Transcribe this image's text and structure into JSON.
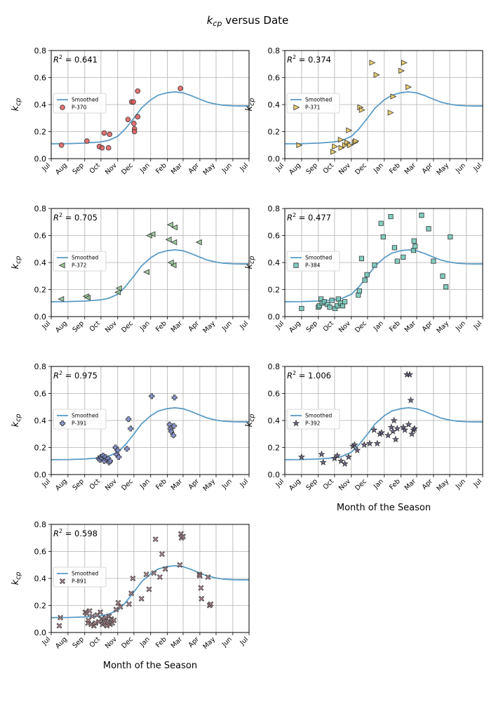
{
  "figure": {
    "title_prefix": "k",
    "title_sub": "cp",
    "title_suffix": " versus Date"
  },
  "colors": {
    "smooth_line": "#5b9bc6",
    "grid": "#b0b0b0"
  },
  "chart_data": {
    "type": "scatter",
    "x_axis": {
      "range": [
        "2023-07-01",
        "2024-07-01"
      ],
      "tick_dates": [
        "2023-07-01",
        "2023-08-01",
        "2023-09-01",
        "2023-10-01",
        "2023-11-01",
        "2023-12-01",
        "2024-01-01",
        "2024-02-01",
        "2024-03-01",
        "2024-04-01",
        "2024-05-01",
        "2024-06-01",
        "2024-07-01"
      ],
      "tick_labels": [
        "Jul",
        "Aug",
        "Sep",
        "Oct",
        "Nov",
        "Dec",
        "Jan",
        "Feb",
        "Mar",
        "Apr",
        "May",
        "Jun",
        "Jul"
      ],
      "label": "Month of the Season"
    },
    "y_axis": {
      "label_prefix": "k",
      "label_sub": "cp",
      "range": [
        0,
        0.8
      ],
      "ticks": [
        "0.0",
        "0.2",
        "0.4",
        "0.6",
        "0.8"
      ]
    },
    "grid": true,
    "legend_placement": "center-left",
    "smoothed": {
      "name": "Smoothed",
      "points": [
        [
          "2023-07-01",
          0.11
        ],
        [
          "2023-08-01",
          0.111
        ],
        [
          "2023-09-01",
          0.115
        ],
        [
          "2023-10-01",
          0.124
        ],
        [
          "2023-10-15",
          0.135
        ],
        [
          "2023-11-01",
          0.165
        ],
        [
          "2023-11-15",
          0.22
        ],
        [
          "2023-12-01",
          0.3
        ],
        [
          "2023-12-15",
          0.375
        ],
        [
          "2024-01-01",
          0.435
        ],
        [
          "2024-01-15",
          0.47
        ],
        [
          "2024-02-01",
          0.488
        ],
        [
          "2024-02-15",
          0.494
        ],
        [
          "2024-03-01",
          0.487
        ],
        [
          "2024-03-15",
          0.468
        ],
        [
          "2024-04-01",
          0.44
        ],
        [
          "2024-04-15",
          0.418
        ],
        [
          "2024-05-01",
          0.403
        ],
        [
          "2024-05-15",
          0.395
        ],
        [
          "2024-06-01",
          0.391
        ],
        [
          "2024-06-15",
          0.39
        ],
        [
          "2024-07-01",
          0.39
        ]
      ]
    },
    "panels": [
      {
        "id": "P-370",
        "r2": "0.641",
        "marker": "circle",
        "color": "#e05a5a",
        "xlabel_visible": false,
        "points": [
          [
            "2023-07-20",
            0.1
          ],
          [
            "2023-09-05",
            0.13
          ],
          [
            "2023-09-28",
            0.09
          ],
          [
            "2023-10-03",
            0.08
          ],
          [
            "2023-10-07",
            0.19
          ],
          [
            "2023-10-15",
            0.08
          ],
          [
            "2023-10-17",
            0.18
          ],
          [
            "2023-11-20",
            0.29
          ],
          [
            "2023-11-27",
            0.42
          ],
          [
            "2023-11-30",
            0.42
          ],
          [
            "2023-12-01",
            0.26
          ],
          [
            "2023-12-02",
            0.22
          ],
          [
            "2023-12-02",
            0.2
          ],
          [
            "2023-12-08",
            0.31
          ],
          [
            "2023-12-08",
            0.5
          ],
          [
            "2024-02-25",
            0.52
          ]
        ]
      },
      {
        "id": "P-371",
        "r2": "0.374",
        "marker": "triangle-right",
        "color": "#e8c65a",
        "xlabel_visible": false,
        "points": [
          [
            "2023-07-27",
            0.1
          ],
          [
            "2023-09-28",
            0.05
          ],
          [
            "2023-10-01",
            0.09
          ],
          [
            "2023-10-12",
            0.14
          ],
          [
            "2023-10-13",
            0.08
          ],
          [
            "2023-10-20",
            0.1
          ],
          [
            "2023-10-24",
            0.12
          ],
          [
            "2023-10-27",
            0.21
          ],
          [
            "2023-10-29",
            0.1
          ],
          [
            "2023-11-07",
            0.12
          ],
          [
            "2023-11-09",
            0.13
          ],
          [
            "2023-11-17",
            0.38
          ],
          [
            "2023-11-20",
            0.36
          ],
          [
            "2023-12-09",
            0.71
          ],
          [
            "2023-12-17",
            0.62
          ],
          [
            "2024-01-12",
            0.34
          ],
          [
            "2024-01-17",
            0.46
          ],
          [
            "2024-02-01",
            0.65
          ],
          [
            "2024-02-06",
            0.71
          ],
          [
            "2024-02-14",
            0.53
          ]
        ]
      },
      {
        "id": "P-372",
        "r2": "0.705",
        "marker": "triangle-left",
        "color": "#8fbf8f",
        "xlabel_visible": false,
        "points": [
          [
            "2023-07-20",
            0.13
          ],
          [
            "2023-09-04",
            0.15
          ],
          [
            "2023-09-07",
            0.14
          ],
          [
            "2023-11-02",
            0.18
          ],
          [
            "2023-11-04",
            0.21
          ],
          [
            "2023-12-25",
            0.33
          ],
          [
            "2023-12-30",
            0.6
          ],
          [
            "2024-01-05",
            0.61
          ],
          [
            "2024-02-04",
            0.57
          ],
          [
            "2024-02-07",
            0.68
          ],
          [
            "2024-02-08",
            0.4
          ],
          [
            "2024-02-13",
            0.38
          ],
          [
            "2024-02-14",
            0.55
          ],
          [
            "2024-02-15",
            0.66
          ],
          [
            "2024-03-31",
            0.55
          ]
        ]
      },
      {
        "id": "P-384",
        "r2": "0.477",
        "marker": "square",
        "color": "#6fc6b6",
        "xlabel_visible": false,
        "points": [
          [
            "2023-08-01",
            0.06
          ],
          [
            "2023-09-01",
            0.07
          ],
          [
            "2023-09-03",
            0.08
          ],
          [
            "2023-09-06",
            0.13
          ],
          [
            "2023-09-08",
            0.1
          ],
          [
            "2023-09-12",
            0.11
          ],
          [
            "2023-09-18",
            0.09
          ],
          [
            "2023-09-22",
            0.07
          ],
          [
            "2023-09-26",
            0.12
          ],
          [
            "2023-10-02",
            0.06
          ],
          [
            "2023-10-06",
            0.08
          ],
          [
            "2023-10-08",
            0.13
          ],
          [
            "2023-10-12",
            0.1
          ],
          [
            "2023-10-16",
            0.08
          ],
          [
            "2023-10-20",
            0.11
          ],
          [
            "2023-11-14",
            0.16
          ],
          [
            "2023-11-16",
            0.19
          ],
          [
            "2023-11-20",
            0.43
          ],
          [
            "2023-11-26",
            0.27
          ],
          [
            "2023-11-30",
            0.31
          ],
          [
            "2023-12-14",
            0.38
          ],
          [
            "2023-12-26",
            0.69
          ],
          [
            "2023-12-30",
            0.59
          ],
          [
            "2024-01-13",
            0.74
          ],
          [
            "2024-01-20",
            0.51
          ],
          [
            "2024-01-25",
            0.41
          ],
          [
            "2024-02-05",
            0.44
          ],
          [
            "2024-02-24",
            0.49
          ],
          [
            "2024-02-25",
            0.56
          ],
          [
            "2024-02-27",
            0.52
          ],
          [
            "2024-03-10",
            0.75
          ],
          [
            "2024-03-23",
            0.65
          ],
          [
            "2024-04-01",
            0.41
          ],
          [
            "2024-04-18",
            0.3
          ],
          [
            "2024-04-24",
            0.22
          ],
          [
            "2024-05-02",
            0.59
          ]
        ]
      },
      {
        "id": "P-391",
        "r2": "0.975",
        "marker": "plus",
        "color": "#7f8fd6",
        "xlabel_visible": false,
        "points": [
          [
            "2023-09-27",
            0.12
          ],
          [
            "2023-09-29",
            0.11
          ],
          [
            "2023-10-01",
            0.13
          ],
          [
            "2023-10-03",
            0.12
          ],
          [
            "2023-10-05",
            0.14
          ],
          [
            "2023-10-07",
            0.1
          ],
          [
            "2023-10-09",
            0.13
          ],
          [
            "2023-10-12",
            0.11
          ],
          [
            "2023-10-14",
            0.12
          ],
          [
            "2023-10-16",
            0.09
          ],
          [
            "2023-10-18",
            0.1
          ],
          [
            "2023-10-28",
            0.2
          ],
          [
            "2023-10-30",
            0.15
          ],
          [
            "2023-11-01",
            0.18
          ],
          [
            "2023-11-03",
            0.13
          ],
          [
            "2023-11-18",
            0.19
          ],
          [
            "2023-11-21",
            0.41
          ],
          [
            "2023-11-25",
            0.34
          ],
          [
            "2024-01-03",
            0.58
          ],
          [
            "2024-02-05",
            0.37
          ],
          [
            "2024-02-07",
            0.34
          ],
          [
            "2024-02-08",
            0.32
          ],
          [
            "2024-02-12",
            0.29
          ],
          [
            "2024-02-13",
            0.36
          ],
          [
            "2024-02-14",
            0.57
          ]
        ]
      },
      {
        "id": "P-392",
        "r2": "1.006",
        "marker": "star",
        "color": "#5a4e7a",
        "xlabel_visible": true,
        "points": [
          [
            "2023-08-01",
            0.13
          ],
          [
            "2023-09-07",
            0.15
          ],
          [
            "2023-09-10",
            0.09
          ],
          [
            "2023-10-01",
            0.12
          ],
          [
            "2023-10-06",
            0.14
          ],
          [
            "2023-10-13",
            0.1
          ],
          [
            "2023-10-20",
            0.08
          ],
          [
            "2023-10-27",
            0.13
          ],
          [
            "2023-11-04",
            0.21
          ],
          [
            "2023-11-07",
            0.22
          ],
          [
            "2023-11-12",
            0.18
          ],
          [
            "2023-11-25",
            0.22
          ],
          [
            "2023-12-05",
            0.23
          ],
          [
            "2023-12-13",
            0.33
          ],
          [
            "2023-12-19",
            0.23
          ],
          [
            "2023-12-24",
            0.3
          ],
          [
            "2023-12-27",
            0.31
          ],
          [
            "2024-01-08",
            0.29
          ],
          [
            "2024-01-14",
            0.35
          ],
          [
            "2024-01-17",
            0.32
          ],
          [
            "2024-01-19",
            0.4
          ],
          [
            "2024-01-22",
            0.26
          ],
          [
            "2024-01-25",
            0.34
          ],
          [
            "2024-02-05",
            0.35
          ],
          [
            "2024-02-08",
            0.33
          ],
          [
            "2024-02-12",
            0.74
          ],
          [
            "2024-02-15",
            0.37
          ],
          [
            "2024-02-17",
            0.74
          ],
          [
            "2024-02-19",
            0.55
          ],
          [
            "2024-02-21",
            0.3
          ],
          [
            "2024-02-24",
            0.33
          ],
          [
            "2024-02-26",
            0.34
          ]
        ]
      },
      {
        "id": "P-891",
        "r2": "0.598",
        "marker": "x",
        "color": "#e8a6b0",
        "xlabel_visible": true,
        "points": [
          [
            "2023-07-16",
            0.05
          ],
          [
            "2023-07-18",
            0.11
          ],
          [
            "2023-09-02",
            0.15
          ],
          [
            "2023-09-05",
            0.14
          ],
          [
            "2023-09-07",
            0.07
          ],
          [
            "2023-09-08",
            0.09
          ],
          [
            "2023-09-10",
            0.16
          ],
          [
            "2023-09-13",
            0.06
          ],
          [
            "2023-09-15",
            0.12
          ],
          [
            "2023-09-18",
            0.05
          ],
          [
            "2023-09-21",
            0.07
          ],
          [
            "2023-09-24",
            0.13
          ],
          [
            "2023-09-27",
            0.08
          ],
          [
            "2023-09-30",
            0.15
          ],
          [
            "2023-10-02",
            0.1
          ],
          [
            "2023-10-04",
            0.06
          ],
          [
            "2023-10-06",
            0.09
          ],
          [
            "2023-10-08",
            0.07
          ],
          [
            "2023-10-10",
            0.11
          ],
          [
            "2023-10-12",
            0.05
          ],
          [
            "2023-10-14",
            0.08
          ],
          [
            "2023-10-16",
            0.12
          ],
          [
            "2023-10-18",
            0.06
          ],
          [
            "2023-10-20",
            0.1
          ],
          [
            "2023-10-22",
            0.07
          ],
          [
            "2023-10-25",
            0.09
          ],
          [
            "2023-10-29",
            0.17
          ],
          [
            "2023-11-02",
            0.22
          ],
          [
            "2023-11-06",
            0.19
          ],
          [
            "2023-11-22",
            0.21
          ],
          [
            "2023-11-26",
            0.29
          ],
          [
            "2023-11-29",
            0.4
          ],
          [
            "2023-12-15",
            0.25
          ],
          [
            "2023-12-24",
            0.43
          ],
          [
            "2023-12-29",
            0.32
          ],
          [
            "2024-01-07",
            0.44
          ],
          [
            "2024-01-10",
            0.69
          ],
          [
            "2024-01-18",
            0.41
          ],
          [
            "2024-01-22",
            0.58
          ],
          [
            "2024-01-28",
            0.47
          ],
          [
            "2024-02-24",
            0.5
          ],
          [
            "2024-02-26",
            0.73
          ],
          [
            "2024-02-27",
            0.7
          ],
          [
            "2024-03-01",
            0.71
          ],
          [
            "2024-03-31",
            0.43
          ],
          [
            "2024-04-01",
            0.42
          ],
          [
            "2024-04-03",
            0.33
          ],
          [
            "2024-04-04",
            0.25
          ],
          [
            "2024-04-16",
            0.41
          ],
          [
            "2024-04-19",
            0.2
          ],
          [
            "2024-04-21",
            0.21
          ]
        ]
      }
    ]
  }
}
